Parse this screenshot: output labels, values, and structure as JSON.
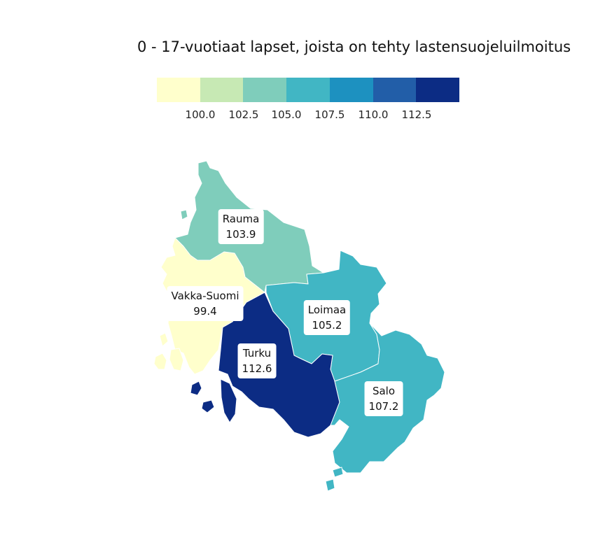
{
  "title": "0 - 17-vuotiaat lapset, joista on tehty lastensuojeluilmoitus",
  "legend": {
    "colors": [
      "#ffffcc",
      "#c7e9b4",
      "#7fcdbb",
      "#41b6c4",
      "#1d91c0",
      "#225ea8",
      "#0c2c84"
    ],
    "ticks": [
      "100.0",
      "102.5",
      "105.0",
      "107.5",
      "110.0",
      "112.5"
    ]
  },
  "regions": [
    {
      "name": "Rauma",
      "value": "103.9",
      "color": "#7fcdbb"
    },
    {
      "name": "Vakka-Suomi",
      "value": "99.4",
      "color": "#ffffcc"
    },
    {
      "name": "Loimaa",
      "value": "105.2",
      "color": "#41b6c4"
    },
    {
      "name": "Turku",
      "value": "112.6",
      "color": "#0c2c84"
    },
    {
      "name": "Salo",
      "value": "107.2",
      "color": "#41b6c4"
    }
  ]
}
